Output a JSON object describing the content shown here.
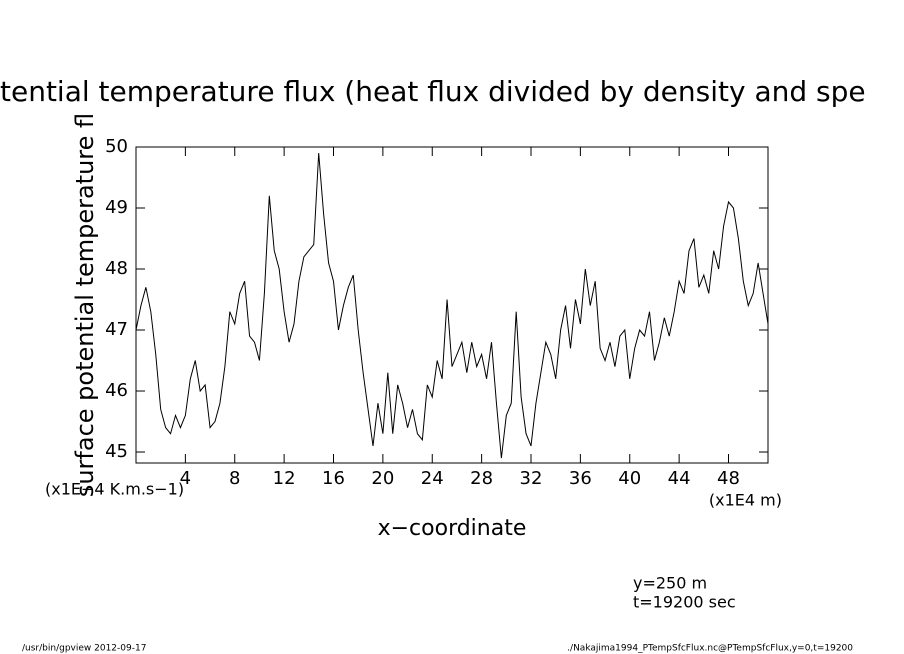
{
  "chart_data": {
    "type": "line",
    "title": "tential temperature flux (heat flux divided by density and spe",
    "y_label": "surface potential temperature fl",
    "y_unit": "(x1E−4 K.m.s−1)",
    "x_label": "x−coordinate",
    "x_unit": "(x1E4 m)",
    "annotations": [
      "y=250 m",
      "t=19200 sec"
    ],
    "footer_left": "/usr/bin/gpview  2012-09-17",
    "footer_right": "./Nakajima1994_PTempSfcFlux.nc@PTempSfcFlux,y=0,t=19200",
    "xlim": [
      0,
      51.2
    ],
    "ylim": [
      44.82,
      50
    ],
    "xticks": [
      4,
      8,
      12,
      16,
      20,
      24,
      28,
      32,
      36,
      40,
      44,
      48
    ],
    "yticks": [
      45,
      46,
      47,
      48,
      49,
      50
    ],
    "x": [
      0,
      0.4,
      0.8,
      1.2,
      1.6,
      2,
      2.4,
      2.8,
      3.2,
      3.6,
      4,
      4.4,
      4.8,
      5.2,
      5.6,
      6,
      6.4,
      6.8,
      7.2,
      7.6,
      8,
      8.4,
      8.8,
      9.2,
      9.6,
      10,
      10.4,
      10.8,
      11.2,
      11.6,
      12,
      12.4,
      12.8,
      13.2,
      13.6,
      14,
      14.4,
      14.8,
      15.2,
      15.6,
      16,
      16.4,
      16.8,
      17.2,
      17.6,
      18,
      18.4,
      18.8,
      19.2,
      19.6,
      20,
      20.4,
      20.8,
      21.2,
      21.6,
      22,
      22.4,
      22.8,
      23.2,
      23.6,
      24,
      24.4,
      24.8,
      25.2,
      25.6,
      26,
      26.4,
      26.8,
      27.2,
      27.6,
      28,
      28.4,
      28.8,
      29.2,
      29.6,
      30,
      30.4,
      30.8,
      31.2,
      31.6,
      32,
      32.4,
      32.8,
      33.2,
      33.6,
      34,
      34.4,
      34.8,
      35.2,
      35.6,
      36,
      36.4,
      36.8,
      37.2,
      37.6,
      38,
      38.4,
      38.8,
      39.2,
      39.6,
      40,
      40.4,
      40.8,
      41.2,
      41.6,
      42,
      42.4,
      42.8,
      43.2,
      43.6,
      44,
      44.4,
      44.8,
      45.2,
      45.6,
      46,
      46.4,
      46.8,
      47.2,
      47.6,
      48,
      48.4,
      48.8,
      49.2,
      49.6,
      50,
      50.4,
      50.8,
      51.2
    ],
    "series": [
      {
        "color": "#000000",
        "values": [
          47.0,
          47.4,
          47.7,
          47.3,
          46.6,
          45.7,
          45.4,
          45.3,
          45.6,
          45.4,
          45.6,
          46.2,
          46.5,
          46.0,
          46.1,
          45.4,
          45.5,
          45.8,
          46.4,
          47.3,
          47.1,
          47.6,
          47.8,
          46.9,
          46.8,
          46.5,
          47.6,
          49.2,
          48.3,
          48.0,
          47.3,
          46.8,
          47.1,
          47.8,
          48.2,
          48.3,
          48.4,
          49.9,
          48.9,
          48.1,
          47.8,
          47.0,
          47.4,
          47.7,
          47.9,
          47.0,
          46.3,
          45.7,
          45.1,
          45.8,
          45.3,
          46.3,
          45.3,
          46.1,
          45.8,
          45.4,
          45.7,
          45.3,
          45.2,
          46.1,
          45.9,
          46.5,
          46.2,
          47.5,
          46.4,
          46.6,
          46.8,
          46.3,
          46.8,
          46.4,
          46.6,
          46.2,
          46.8,
          45.8,
          44.9,
          45.6,
          45.8,
          47.3,
          45.9,
          45.3,
          45.1,
          45.8,
          46.3,
          46.8,
          46.6,
          46.2,
          47.0,
          47.4,
          46.7,
          47.5,
          47.1,
          48.0,
          47.4,
          47.8,
          46.7,
          46.5,
          46.8,
          46.4,
          46.9,
          47.0,
          46.2,
          46.7,
          47.0,
          46.9,
          47.3,
          46.5,
          46.8,
          47.2,
          46.9,
          47.3,
          47.8,
          47.6,
          48.3,
          48.5,
          47.7,
          47.9,
          47.6,
          48.3,
          48.0,
          48.7,
          49.1,
          49.0,
          48.5,
          47.8,
          47.4,
          47.6,
          48.1,
          47.6,
          47.1
        ]
      }
    ]
  }
}
